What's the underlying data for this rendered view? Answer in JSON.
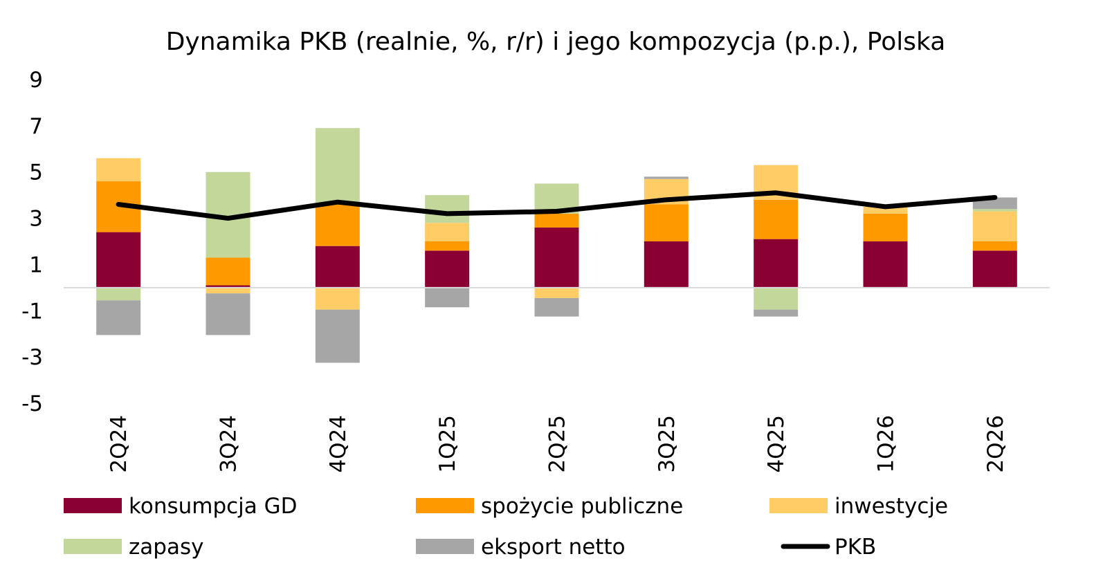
{
  "chart_data": {
    "type": "bar",
    "stacked": true,
    "title": "Dynamika PKB (realnie, %, r/r) i jego kompozycja (p.p.), Polska",
    "xlabel": "",
    "ylabel": "",
    "ylim": [
      -5,
      9
    ],
    "yticks": [
      9,
      7,
      5,
      3,
      1,
      -1,
      -3,
      -5
    ],
    "grid": false,
    "legend_position": "bottom",
    "categories": [
      "2Q24",
      "3Q24",
      "4Q24",
      "1Q25",
      "2Q25",
      "3Q25",
      "4Q25",
      "1Q26",
      "2Q26"
    ],
    "series": [
      {
        "name": "konsumpcja GD",
        "kind": "bar",
        "color": "#8B0033",
        "values": [
          2.4,
          0.1,
          1.8,
          1.6,
          2.6,
          2.0,
          2.1,
          2.0,
          1.6
        ]
      },
      {
        "name": "spożycie publiczne",
        "kind": "bar",
        "color": "#FF9900",
        "values": [
          2.2,
          1.2,
          1.8,
          0.4,
          0.6,
          1.6,
          1.7,
          1.2,
          0.4
        ]
      },
      {
        "name": "inwestycje",
        "kind": "bar",
        "color": "#FFCC66",
        "values": [
          1.0,
          -0.25,
          -0.95,
          0.8,
          -0.45,
          1.1,
          1.5,
          0.3,
          1.3
        ]
      },
      {
        "name": "zapasy",
        "kind": "bar",
        "color": "#C4D79B",
        "values": [
          -0.55,
          3.7,
          3.3,
          1.2,
          1.3,
          0.0,
          -0.95,
          0.0,
          0.1
        ]
      },
      {
        "name": "eksport netto",
        "kind": "bar",
        "color": "#A6A6A6",
        "values": [
          -1.5,
          -1.8,
          -2.3,
          -0.85,
          -0.8,
          0.1,
          -0.3,
          0.0,
          0.5
        ]
      },
      {
        "name": "PKB",
        "kind": "line",
        "color": "#000000",
        "values": [
          3.6,
          3.0,
          3.7,
          3.2,
          3.3,
          3.8,
          4.1,
          3.5,
          3.9
        ]
      }
    ]
  }
}
